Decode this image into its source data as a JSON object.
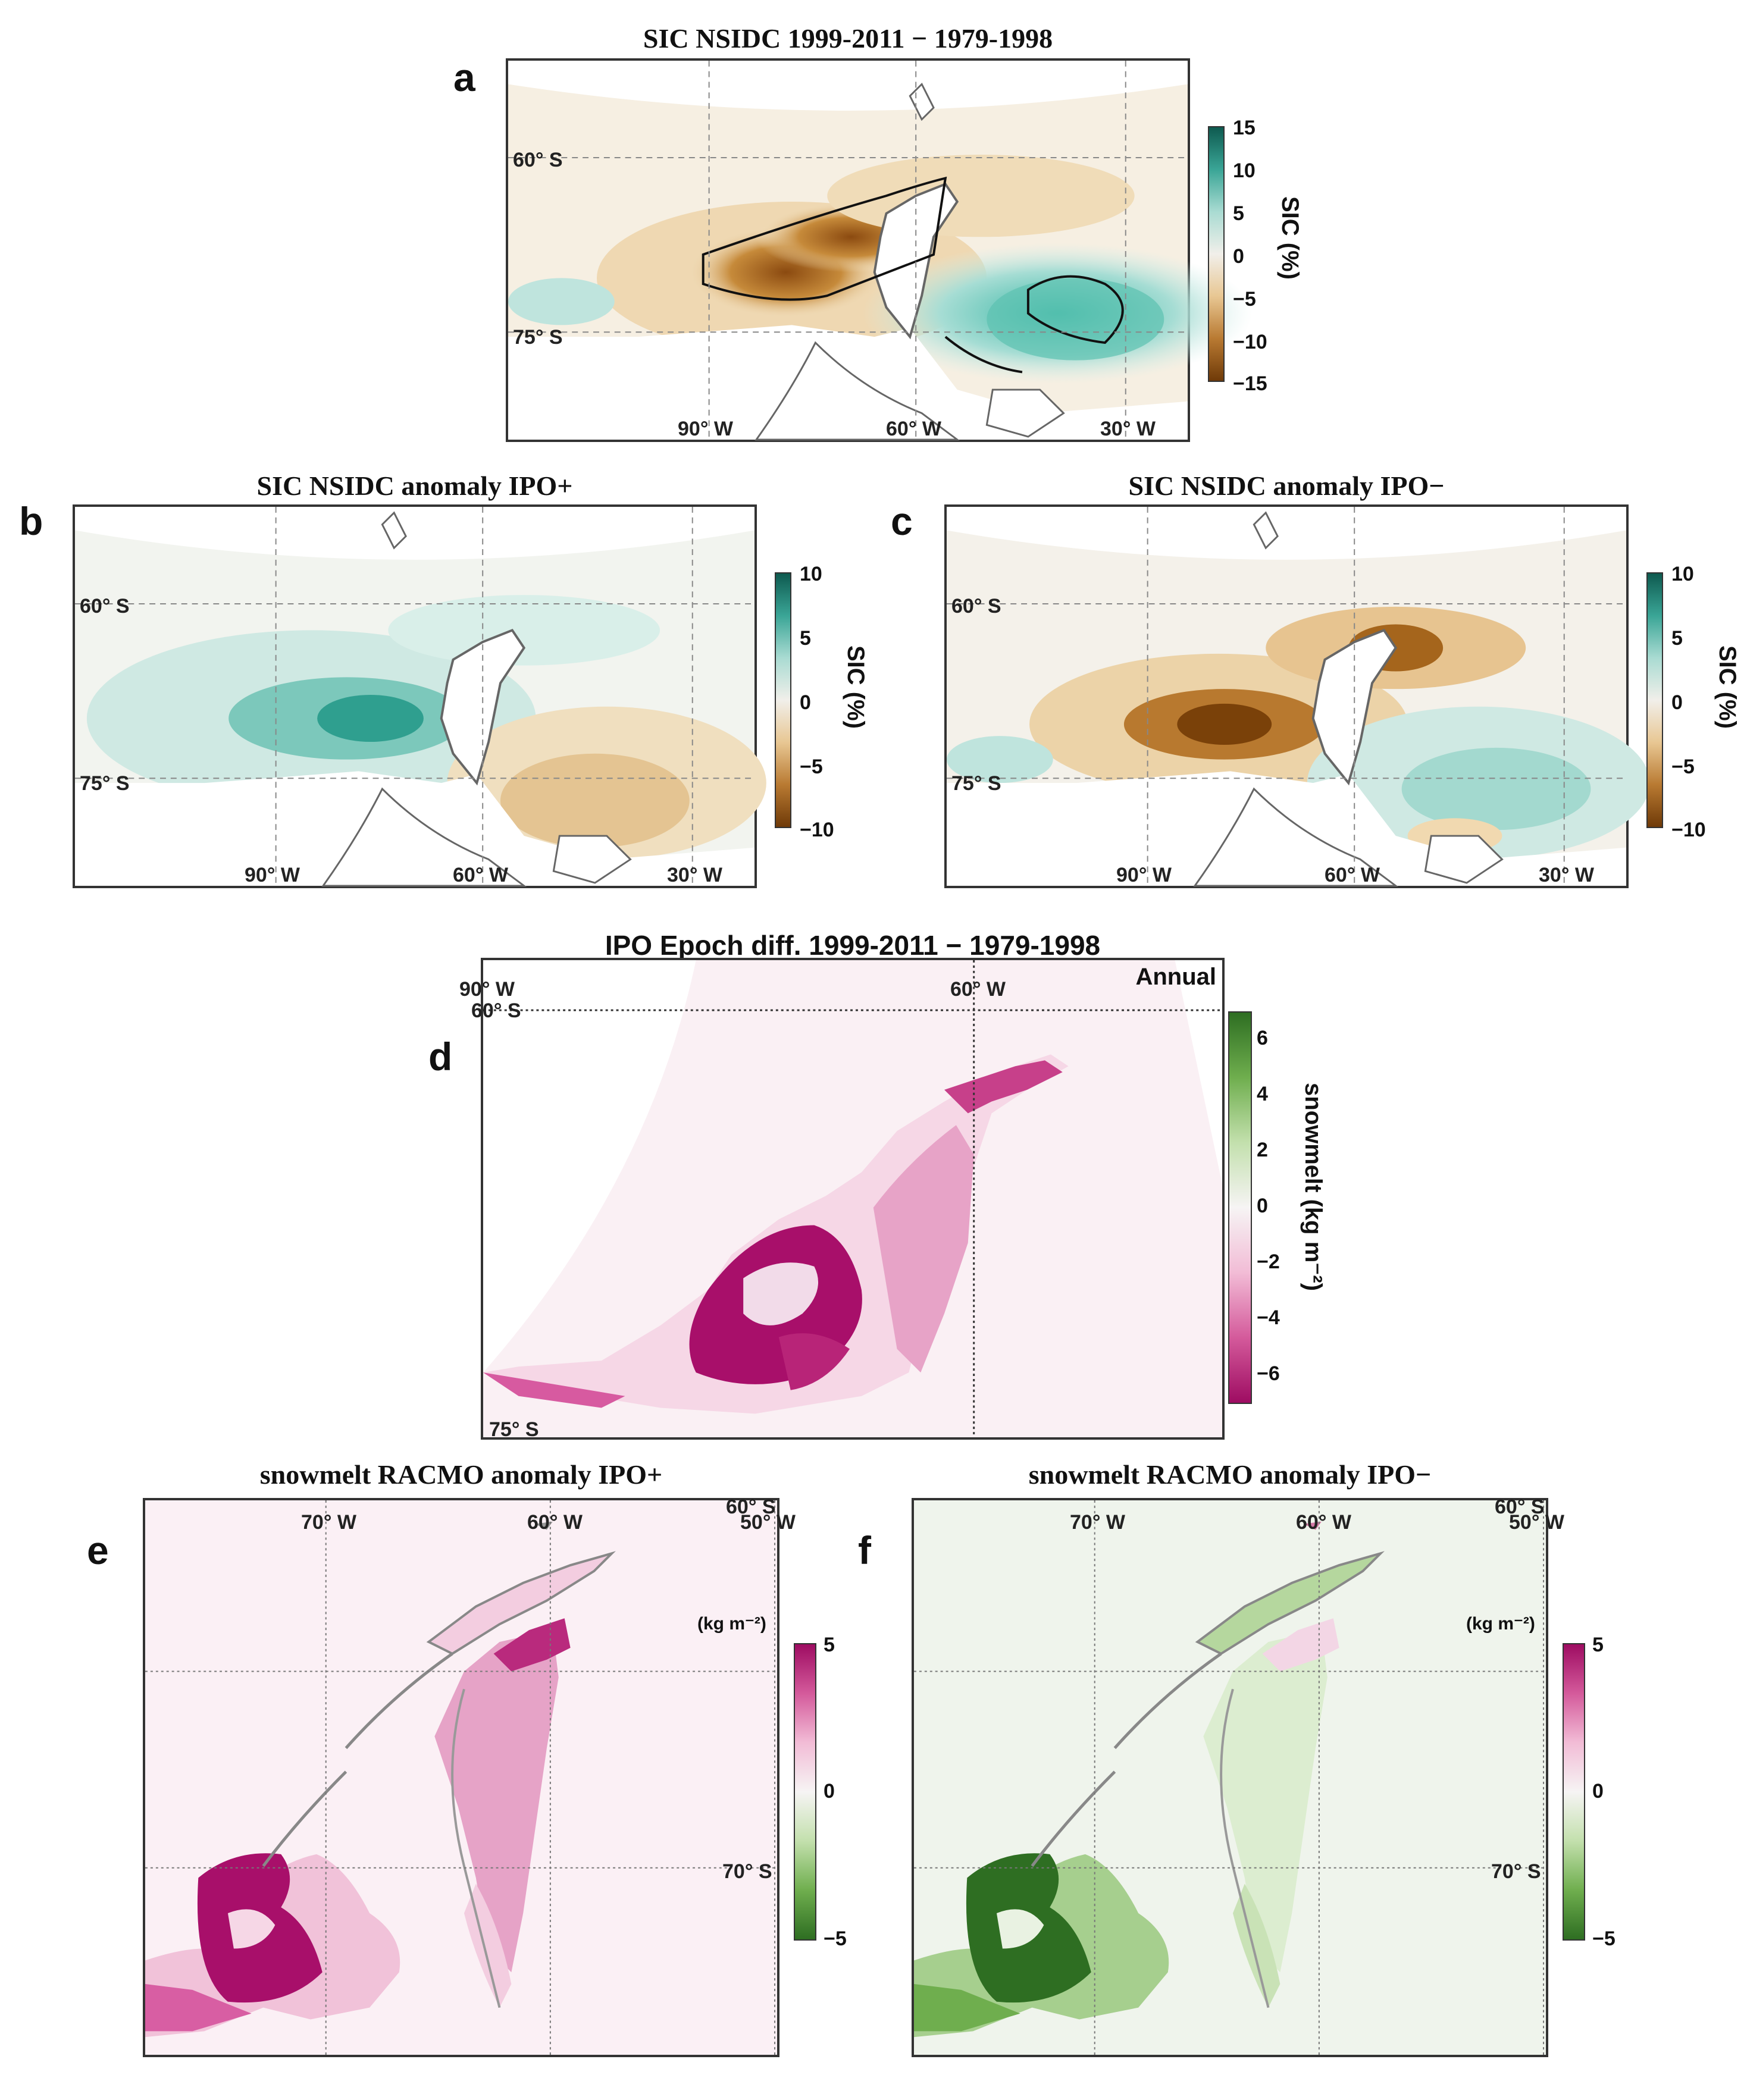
{
  "figure": {
    "panels": {
      "a": {
        "letter": "a",
        "title": "SIC NSIDC 1999-2011 − 1979-1998",
        "lat_labels": [
          "60° S",
          "75° S"
        ],
        "lon_labels": [
          "90° W",
          "60° W",
          "30° W"
        ],
        "cbar_label": "SIC (%)",
        "cbar_ticks": [
          "15",
          "10",
          "5",
          "0",
          "−5",
          "−10",
          "−15"
        ]
      },
      "b": {
        "letter": "b",
        "title": "SIC NSIDC anomaly  IPO+",
        "lat_labels": [
          "60° S",
          "75° S"
        ],
        "lon_labels": [
          "90° W",
          "60° W",
          "30° W"
        ],
        "cbar_label": "SIC (%)",
        "cbar_ticks": [
          "10",
          "5",
          "0",
          "−5",
          "−10"
        ]
      },
      "c": {
        "letter": "c",
        "title": "SIC NSIDC anomaly  IPO−",
        "lat_labels": [
          "60° S",
          "75° S"
        ],
        "lon_labels": [
          "90° W",
          "60° W",
          "30° W"
        ],
        "cbar_label": "SIC (%)",
        "cbar_ticks": [
          "10",
          "5",
          "0",
          "−5",
          "−10"
        ]
      },
      "d": {
        "letter": "d",
        "title": "IPO Epoch diff. 1999-2011  −  1979-1998",
        "season": "Annual",
        "lat_labels": [
          "60° S",
          "75° S"
        ],
        "lon_labels": [
          "90° W",
          "60° W"
        ],
        "cbar_label": "snowmelt (kg m⁻²)",
        "cbar_ticks": [
          "6",
          "4",
          "2",
          "0",
          "−2",
          "−4",
          "−6"
        ]
      },
      "e": {
        "letter": "e",
        "title": "snowmelt RACMO anomaly IPO+",
        "lat_labels": [
          "60° S",
          "70° S"
        ],
        "lon_labels": [
          "70° W",
          "60° W",
          "50° W"
        ],
        "cbar_unit": "(kg m⁻²)",
        "cbar_ticks": [
          "5",
          "0",
          "−5"
        ]
      },
      "f": {
        "letter": "f",
        "title": "snowmelt RACMO anomaly IPO−",
        "lat_labels": [
          "60° S",
          "70° S"
        ],
        "lon_labels": [
          "70° W",
          "60° W",
          "50° W"
        ],
        "cbar_unit": "(kg m⁻²)",
        "cbar_ticks": [
          "5",
          "0",
          "−5"
        ]
      }
    },
    "colors": {
      "sic_positive": "#1a7a6a",
      "sic_negative": "#8b4a10",
      "melt_positive": "#a80f6a",
      "melt_negative": "#2e7d2a"
    }
  }
}
